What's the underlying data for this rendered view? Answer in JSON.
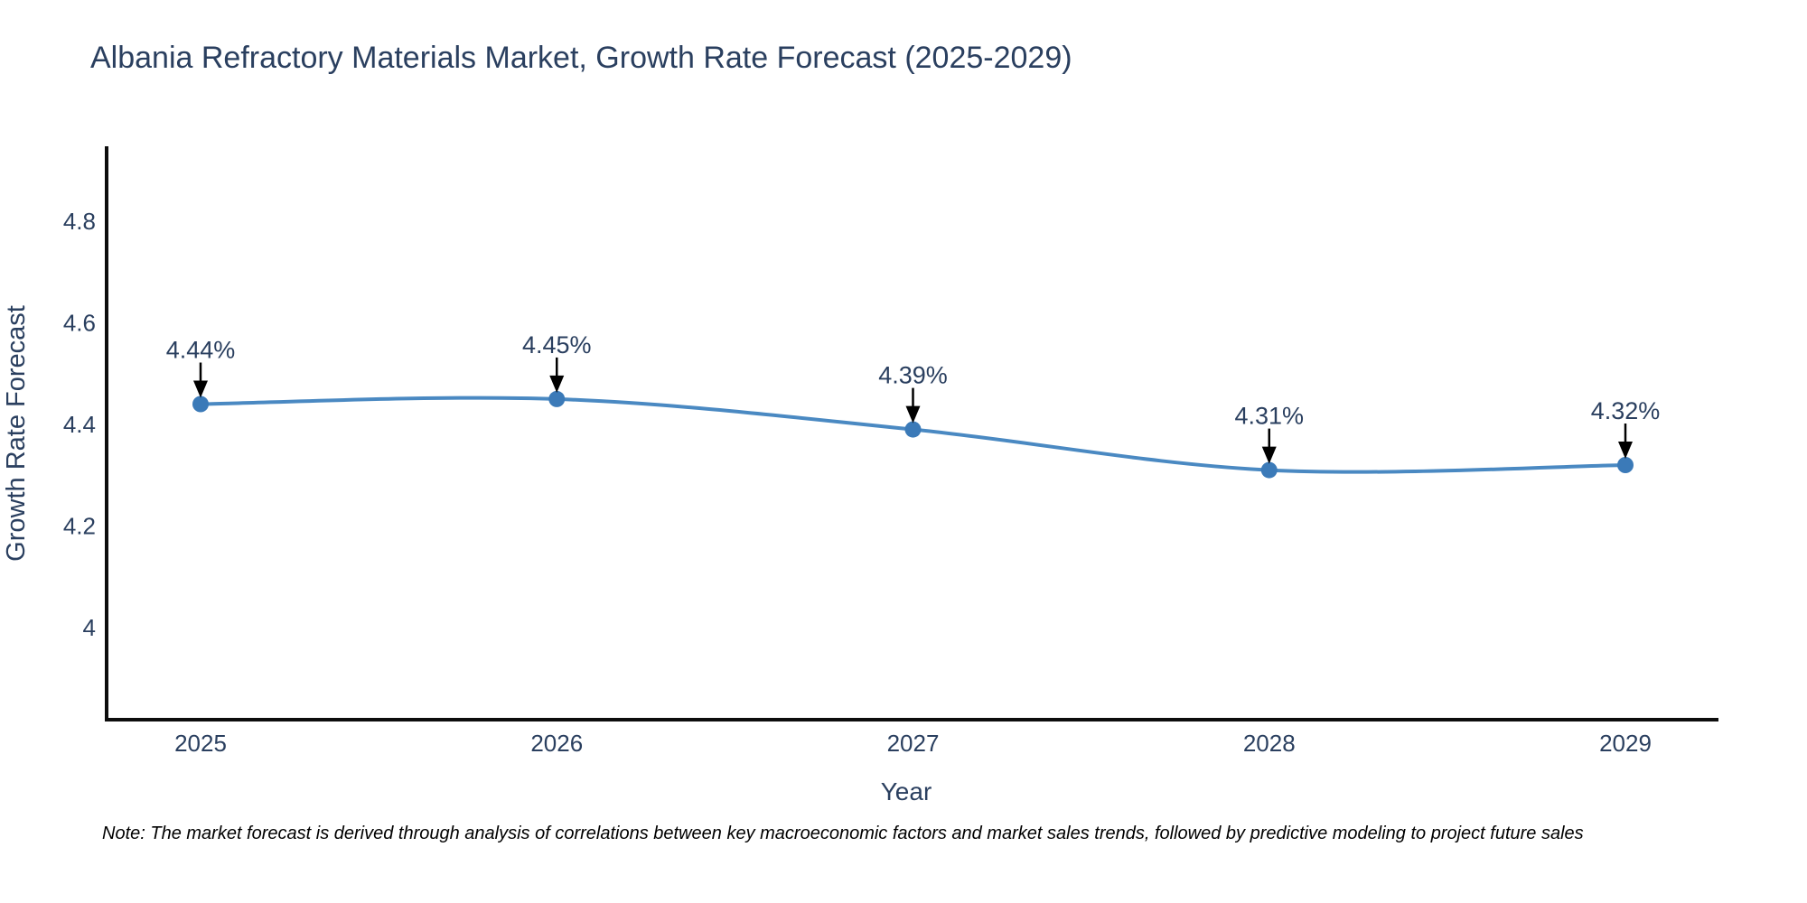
{
  "title": "Albania Refractory Materials Market, Growth Rate Forecast (2025-2029)",
  "note": "Note: The market forecast is derived through analysis of correlations between key macroeconomic factors and market sales trends, followed by predictive modeling to project future sales",
  "chart_data": {
    "type": "line",
    "title": "Albania Refractory Materials Market, Growth Rate Forecast (2025-2029)",
    "x": [
      2025,
      2026,
      2027,
      2028,
      2029
    ],
    "xticklabels": [
      "2025",
      "2026",
      "2027",
      "2028",
      "2029"
    ],
    "series": [
      {
        "name": "Growth Rate Forecast",
        "values": [
          4.44,
          4.45,
          4.39,
          4.31,
          4.32
        ]
      }
    ],
    "point_labels": [
      "4.44%",
      "4.45%",
      "4.39%",
      "4.31%",
      "4.32%"
    ],
    "xlabel": "Year",
    "ylabel": "Growth Rate Forecast",
    "yticks": [
      4.8,
      4.6,
      4.4,
      4.2,
      4
    ],
    "yticklabels": [
      "4.8",
      "4.6",
      "4.4",
      "4.2",
      "4"
    ],
    "ylim": [
      3.82,
      4.95
    ],
    "grid": false,
    "legend": "none",
    "line_shape": "spline",
    "line_color": "#4a89c2",
    "marker_color": "#3b7ab8",
    "axis_color": "#0d0d0d",
    "arrow_color": "#000000",
    "text_color": "#2a3f5f"
  }
}
